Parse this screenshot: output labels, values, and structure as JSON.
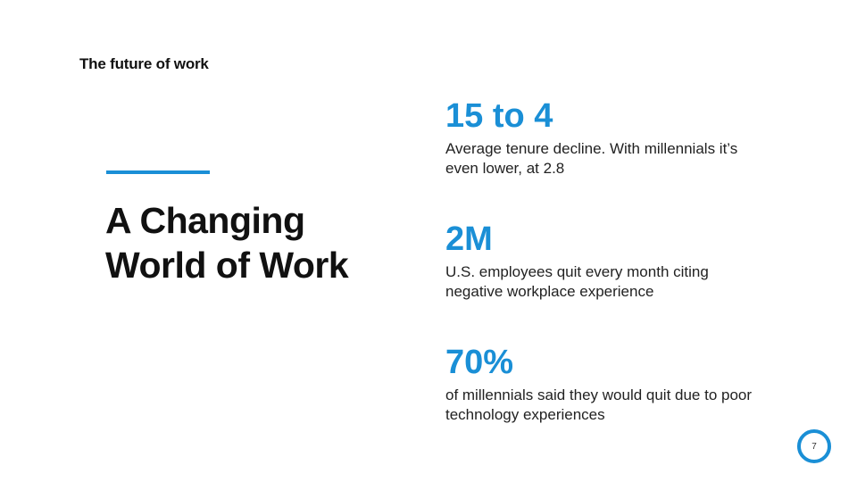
{
  "header": {
    "title": "The future of work"
  },
  "headline": {
    "line1": "A Changing",
    "line2": "World of Work"
  },
  "stats": [
    {
      "value": "15 to 4",
      "desc_line1": "Average tenure decline. With millennials it’s",
      "desc_line2": "even lower, at 2.8"
    },
    {
      "value": "2M",
      "desc_line1": "U.S. employees quit every month citing",
      "desc_line2": "negative workplace experience"
    },
    {
      "value": "70%",
      "desc_line1": "of millennials said they would quit due to poor",
      "desc_line2": "technology experiences"
    }
  ],
  "footer": {
    "page_number": "7"
  },
  "colors": {
    "accent": "#1a8fd6",
    "text": "#111111"
  }
}
